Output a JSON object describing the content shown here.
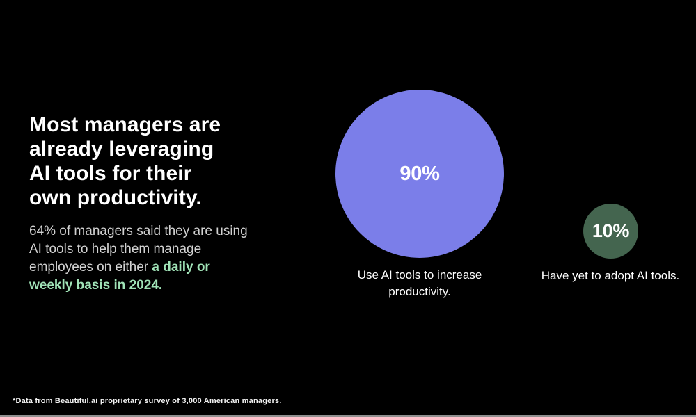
{
  "chart_data": {
    "type": "proportional_circle",
    "title": "",
    "unit": "percent",
    "legend_position": "below-circles",
    "series": [
      {
        "label": "Use AI tools to increase productivity.",
        "value": 90,
        "value_label": "90%",
        "color": "#7b7ee9"
      },
      {
        "label": "Have yet to adopt AI tools.",
        "value": 10,
        "value_label": "10%",
        "color": "#44654f"
      }
    ]
  },
  "headline": {
    "line1": "Most managers are",
    "line2": "already leveraging",
    "line3": "AI tools for their",
    "line4": "own productivity."
  },
  "subtext": {
    "line1": "64% of managers said they are using",
    "line2": "AI tools to help them manage",
    "line3_normal": "employees on either ",
    "line3_highlight": "a daily or",
    "line4_highlight": "weekly basis in 2024."
  },
  "footnote": "*Data from Beautiful.ai proprietary survey of 3,000 American managers.",
  "colors": {
    "background": "#000000",
    "big_circle": "#7b7ee9",
    "small_circle": "#44654f",
    "highlight_text": "#a0e3b7",
    "body_text": "#d2d2d2",
    "bottom_edge": "#8f8f8f"
  }
}
